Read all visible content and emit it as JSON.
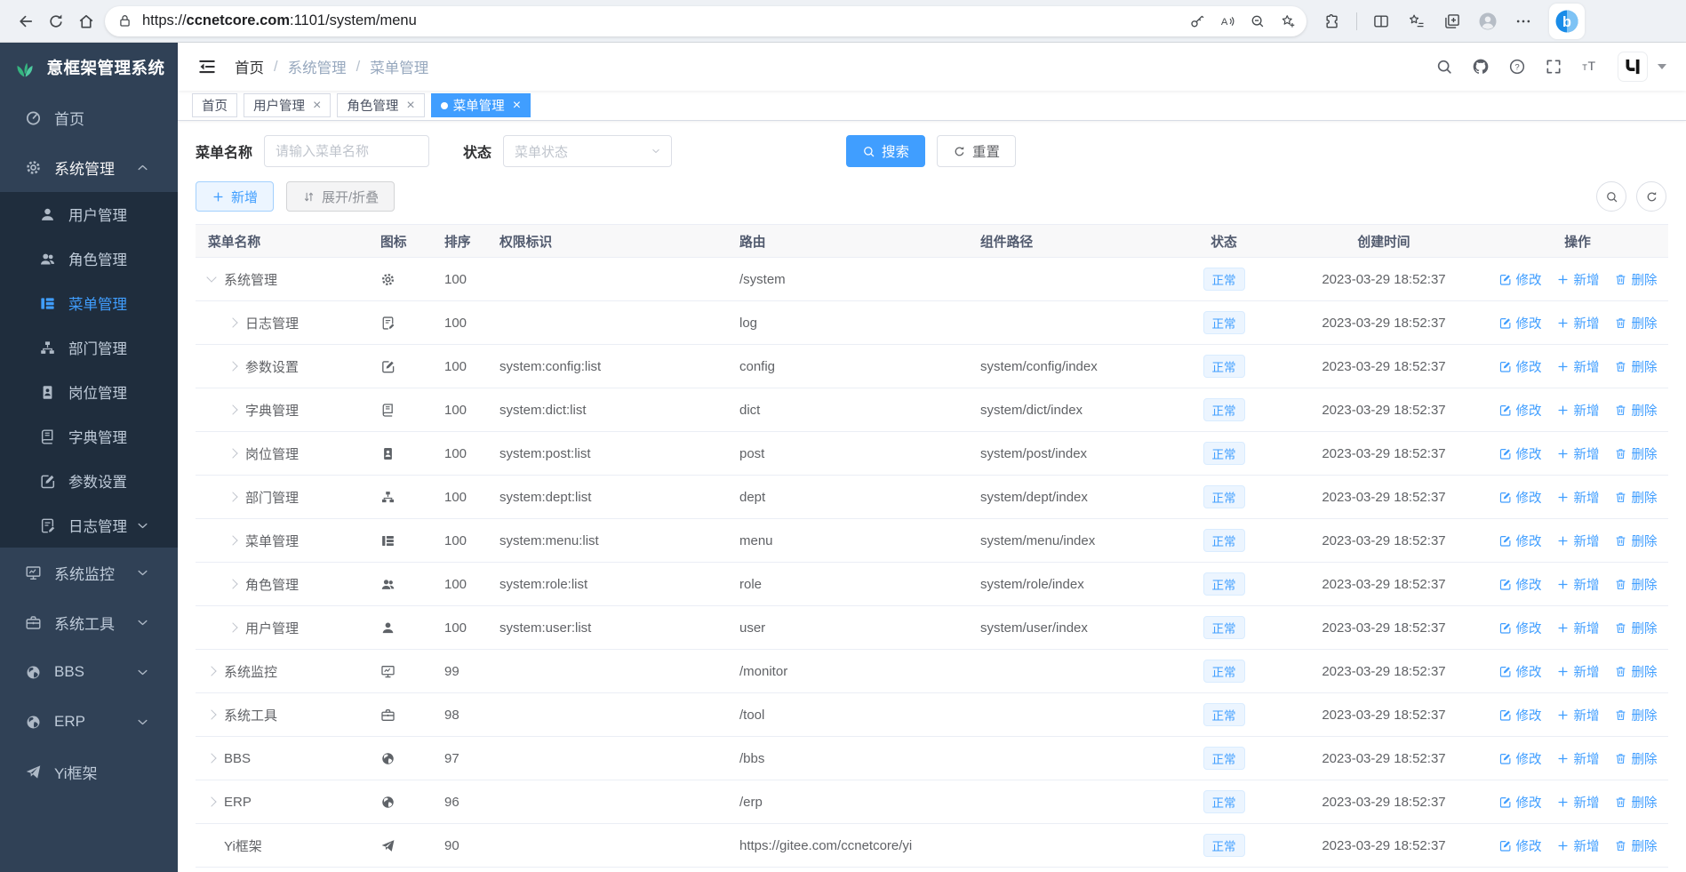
{
  "browser": {
    "url_scheme": "https://",
    "url_domain": "ccnetcore.com",
    "url_path": ":1101/system/menu"
  },
  "sidebar": {
    "logo_title": "意框架管理系统",
    "items": [
      {
        "key": "home",
        "label": "首页",
        "icon": "gauge"
      },
      {
        "key": "system",
        "label": "系统管理",
        "icon": "gear",
        "expanded": true,
        "children": [
          {
            "key": "user",
            "label": "用户管理",
            "icon": "user"
          },
          {
            "key": "role",
            "label": "角色管理",
            "icon": "users"
          },
          {
            "key": "menu",
            "label": "菜单管理",
            "icon": "menu",
            "active": true
          },
          {
            "key": "dept",
            "label": "部门管理",
            "icon": "dept"
          },
          {
            "key": "post",
            "label": "岗位管理",
            "icon": "post"
          },
          {
            "key": "dict",
            "label": "字典管理",
            "icon": "dict"
          },
          {
            "key": "config",
            "label": "参数设置",
            "icon": "edit"
          },
          {
            "key": "log",
            "label": "日志管理",
            "icon": "log",
            "arrow": "down"
          }
        ]
      },
      {
        "key": "monitor",
        "label": "系统监控",
        "icon": "monitor",
        "arrow": "down"
      },
      {
        "key": "tool",
        "label": "系统工具",
        "icon": "tool",
        "arrow": "down"
      },
      {
        "key": "bbs",
        "label": "BBS",
        "icon": "globe",
        "arrow": "down"
      },
      {
        "key": "erp",
        "label": "ERP",
        "icon": "globe",
        "arrow": "down"
      },
      {
        "key": "yi",
        "label": "Yi框架",
        "icon": "plane"
      }
    ]
  },
  "breadcrumb": [
    "首页",
    "系统管理",
    "菜单管理"
  ],
  "tabs": [
    {
      "key": "home",
      "label": "首页",
      "closable": false
    },
    {
      "key": "user",
      "label": "用户管理",
      "closable": true
    },
    {
      "key": "role",
      "label": "角色管理",
      "closable": true
    },
    {
      "key": "menu",
      "label": "菜单管理",
      "closable": true,
      "active": true
    }
  ],
  "filters": {
    "name_label": "菜单名称",
    "name_placeholder": "请输入菜单名称",
    "status_label": "状态",
    "status_placeholder": "菜单状态",
    "search_label": "搜索",
    "reset_label": "重置"
  },
  "toolbar": {
    "add_label": "新增",
    "expand_label": "展开/折叠"
  },
  "table": {
    "columns": [
      "菜单名称",
      "图标",
      "排序",
      "权限标识",
      "路由",
      "组件路径",
      "状态",
      "创建时间",
      "操作"
    ],
    "actions": {
      "edit": "修改",
      "add": "新增",
      "delete": "删除"
    },
    "rows": [
      {
        "name": "系统管理",
        "icon": "gear",
        "level": 0,
        "arrow": "down",
        "order": "100",
        "perm": "",
        "route": "/system",
        "component": "",
        "status": "正常",
        "created": "2023-03-29 18:52:37"
      },
      {
        "name": "日志管理",
        "icon": "log",
        "level": 1,
        "arrow": "right",
        "order": "100",
        "perm": "",
        "route": "log",
        "component": "",
        "status": "正常",
        "created": "2023-03-29 18:52:37"
      },
      {
        "name": "参数设置",
        "icon": "edit",
        "level": 1,
        "arrow": "right",
        "order": "100",
        "perm": "system:config:list",
        "route": "config",
        "component": "system/config/index",
        "status": "正常",
        "created": "2023-03-29 18:52:37"
      },
      {
        "name": "字典管理",
        "icon": "dict",
        "level": 1,
        "arrow": "right",
        "order": "100",
        "perm": "system:dict:list",
        "route": "dict",
        "component": "system/dict/index",
        "status": "正常",
        "created": "2023-03-29 18:52:37"
      },
      {
        "name": "岗位管理",
        "icon": "post",
        "level": 1,
        "arrow": "right",
        "order": "100",
        "perm": "system:post:list",
        "route": "post",
        "component": "system/post/index",
        "status": "正常",
        "created": "2023-03-29 18:52:37"
      },
      {
        "name": "部门管理",
        "icon": "dept",
        "level": 1,
        "arrow": "right",
        "order": "100",
        "perm": "system:dept:list",
        "route": "dept",
        "component": "system/dept/index",
        "status": "正常",
        "created": "2023-03-29 18:52:37"
      },
      {
        "name": "菜单管理",
        "icon": "menu",
        "level": 1,
        "arrow": "right",
        "order": "100",
        "perm": "system:menu:list",
        "route": "menu",
        "component": "system/menu/index",
        "status": "正常",
        "created": "2023-03-29 18:52:37"
      },
      {
        "name": "角色管理",
        "icon": "users",
        "level": 1,
        "arrow": "right",
        "order": "100",
        "perm": "system:role:list",
        "route": "role",
        "component": "system/role/index",
        "status": "正常",
        "created": "2023-03-29 18:52:37"
      },
      {
        "name": "用户管理",
        "icon": "user",
        "level": 1,
        "arrow": "right",
        "order": "100",
        "perm": "system:user:list",
        "route": "user",
        "component": "system/user/index",
        "status": "正常",
        "created": "2023-03-29 18:52:37"
      },
      {
        "name": "系统监控",
        "icon": "monitor",
        "level": 0,
        "arrow": "right",
        "order": "99",
        "perm": "",
        "route": "/monitor",
        "component": "",
        "status": "正常",
        "created": "2023-03-29 18:52:37"
      },
      {
        "name": "系统工具",
        "icon": "tool",
        "level": 0,
        "arrow": "right",
        "order": "98",
        "perm": "",
        "route": "/tool",
        "component": "",
        "status": "正常",
        "created": "2023-03-29 18:52:37"
      },
      {
        "name": "BBS",
        "icon": "globe",
        "level": 0,
        "arrow": "right",
        "order": "97",
        "perm": "",
        "route": "/bbs",
        "component": "",
        "status": "正常",
        "created": "2023-03-29 18:52:37"
      },
      {
        "name": "ERP",
        "icon": "globe",
        "level": 0,
        "arrow": "right",
        "order": "96",
        "perm": "",
        "route": "/erp",
        "component": "",
        "status": "正常",
        "created": "2023-03-29 18:52:37"
      },
      {
        "name": "Yi框架",
        "icon": "plane",
        "level": 0,
        "arrow": "none",
        "order": "90",
        "perm": "",
        "route": "https://gitee.com/ccnetcore/yi",
        "component": "",
        "status": "正常",
        "created": "2023-03-29 18:52:37"
      }
    ]
  },
  "colors": {
    "accent": "#409eff",
    "sidebar_bg": "#304156",
    "sidebar_submenu_bg": "#1f2d3d",
    "status_tag_bg": "#ecf5ff",
    "status_tag_text": "#409eff"
  }
}
